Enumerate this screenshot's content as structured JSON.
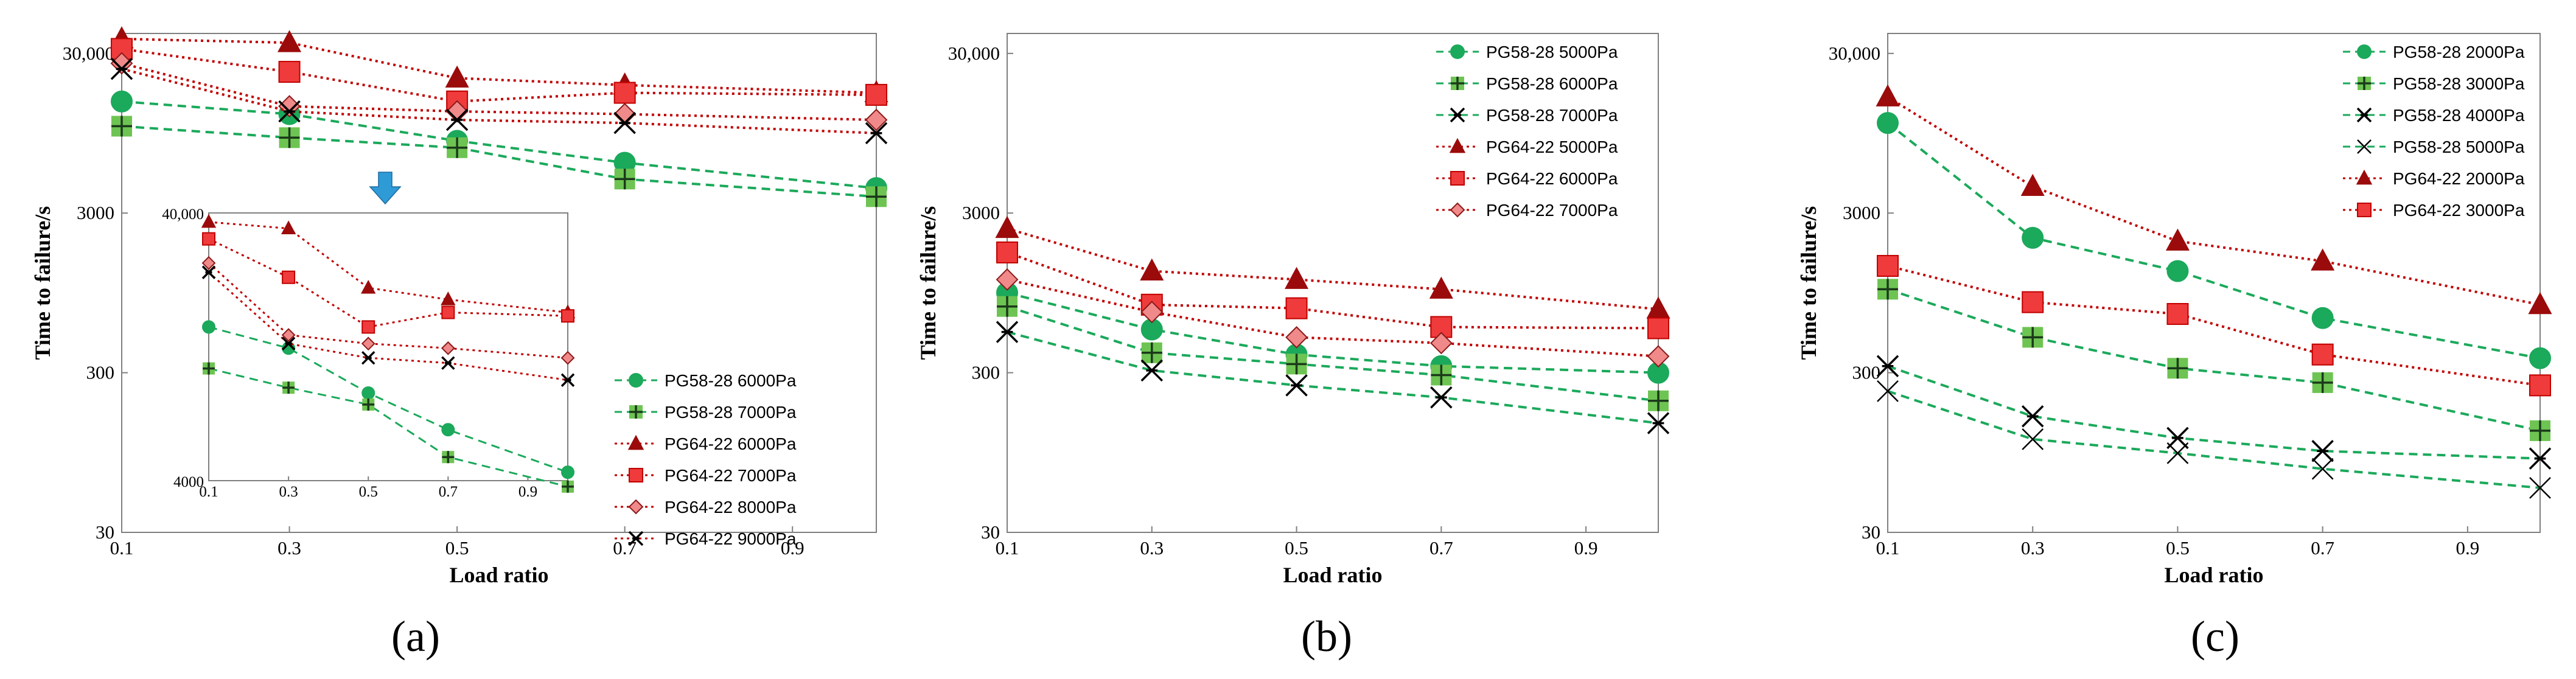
{
  "chart_data": [
    {
      "id": "a",
      "type": "line",
      "panel_label": "(a)",
      "xlabel": "Load ratio",
      "ylabel": "Time to failure/s",
      "yscale": "log",
      "xlim": [
        0.1,
        1.0
      ],
      "ylim": [
        30,
        40000
      ],
      "x_ticks": [
        "0.1",
        "0.3",
        "0.5",
        "0.7",
        "0.9"
      ],
      "y_ticks": [
        "30",
        "300",
        "3000",
        "30,000"
      ],
      "legend_position": "bottom-right",
      "x": [
        0.1,
        0.3,
        0.5,
        0.7,
        1.0
      ],
      "series": [
        {
          "name": "PG58-28 6000Pa",
          "group": "PG58-28",
          "marker": "circle",
          "values": [
            15000,
            12500,
            8500,
            6200,
            4300
          ]
        },
        {
          "name": "PG58-28 7000Pa",
          "group": "PG58-28",
          "marker": "plus-square",
          "values": [
            10500,
            8900,
            7700,
            4900,
            3800
          ]
        },
        {
          "name": "PG64-22 6000Pa",
          "group": "PG64-22",
          "marker": "triangle",
          "values": [
            37000,
            35000,
            21000,
            19000,
            17000
          ]
        },
        {
          "name": "PG64-22 7000Pa",
          "group": "PG64-22",
          "marker": "square",
          "values": [
            32000,
            23000,
            15000,
            17000,
            16500
          ]
        },
        {
          "name": "PG64-22 8000Pa",
          "group": "PG64-22",
          "marker": "diamond",
          "values": [
            26000,
            14000,
            13000,
            12500,
            11500
          ]
        },
        {
          "name": "PG64-22 9000Pa",
          "group": "PG64-22",
          "marker": "x-star",
          "values": [
            24000,
            13000,
            11500,
            11000,
            9500
          ]
        }
      ],
      "inset": {
        "ylim": [
          4000,
          40000
        ],
        "x_ticks": [
          "0.1",
          "0.3",
          "0.5",
          "0.7",
          "0.9"
        ],
        "y_ticks": [
          "4000",
          "40,000"
        ],
        "note": "magnified view of the upper curves"
      }
    },
    {
      "id": "b",
      "type": "line",
      "panel_label": "(b)",
      "xlabel": "Load ratio",
      "ylabel": "Time to failure/s",
      "yscale": "log",
      "xlim": [
        0.1,
        1.0
      ],
      "ylim": [
        30,
        40000
      ],
      "x_ticks": [
        "0.1",
        "0.3",
        "0.5",
        "0.7",
        "0.9"
      ],
      "y_ticks": [
        "30",
        "300",
        "3000",
        "30,000"
      ],
      "legend_position": "top-right",
      "x": [
        0.1,
        0.3,
        0.5,
        0.7,
        1.0
      ],
      "series": [
        {
          "name": "PG58-28 5000Pa",
          "group": "PG58-28",
          "marker": "circle",
          "values": [
            950,
            560,
            390,
            330,
            300
          ]
        },
        {
          "name": "PG58-28 6000Pa",
          "group": "PG58-28",
          "marker": "plus-square",
          "values": [
            780,
            400,
            340,
            290,
            200
          ]
        },
        {
          "name": "PG58-28 7000Pa",
          "group": "PG58-28",
          "marker": "x-star",
          "values": [
            540,
            310,
            250,
            210,
            145
          ]
        },
        {
          "name": "PG64-22 5000Pa",
          "group": "PG64-22",
          "marker": "triangle",
          "values": [
            2400,
            1300,
            1150,
            1000,
            750
          ]
        },
        {
          "name": "PG64-22 6000Pa",
          "group": "PG64-22",
          "marker": "square",
          "values": [
            1700,
            800,
            760,
            580,
            570
          ]
        },
        {
          "name": "PG64-22 7000Pa",
          "group": "PG64-22",
          "marker": "diamond",
          "values": [
            1150,
            720,
            500,
            460,
            380
          ]
        }
      ]
    },
    {
      "id": "c",
      "type": "line",
      "panel_label": "(c)",
      "xlabel": "Load ratio",
      "ylabel": "Time to failure/s",
      "yscale": "log",
      "xlim": [
        0.1,
        1.0
      ],
      "ylim": [
        30,
        40000
      ],
      "x_ticks": [
        "0.1",
        "0.3",
        "0.5",
        "0.7",
        "0.9"
      ],
      "y_ticks": [
        "30",
        "300",
        "3000",
        "30,000"
      ],
      "legend_position": "top-right",
      "x": [
        0.1,
        0.3,
        0.5,
        0.7,
        1.0
      ],
      "series": [
        {
          "name": "PG58-28 2000Pa",
          "group": "PG58-28",
          "marker": "circle",
          "values": [
            11000,
            2100,
            1300,
            660,
            370
          ]
        },
        {
          "name": "PG58-28 3000Pa",
          "group": "PG58-28",
          "marker": "plus-square",
          "values": [
            1000,
            500,
            320,
            260,
            130
          ]
        },
        {
          "name": "PG58-28 4000Pa",
          "group": "PG58-28",
          "marker": "x-star",
          "values": [
            330,
            160,
            117,
            97,
            87
          ]
        },
        {
          "name": "PG58-28 5000Pa",
          "group": "PG58-28",
          "marker": "x-thin",
          "values": [
            230,
            115,
            94,
            75,
            57
          ]
        },
        {
          "name": "PG64-22 2000Pa",
          "group": "PG64-22",
          "marker": "triangle",
          "values": [
            16000,
            4400,
            2000,
            1500,
            800
          ]
        },
        {
          "name": "PG64-22 3000Pa",
          "group": "PG64-22",
          "marker": "square",
          "values": [
            1400,
            830,
            700,
            390,
            250
          ]
        }
      ]
    }
  ],
  "colors": {
    "PG58-28": "#1ba95b",
    "PG58-28-marker": "#6ec452",
    "PG64-22": "#c00000",
    "PG64-22-triangle": "#9b0b0b",
    "PG64-22-square": "#ef3b3b",
    "PG64-22-diamond": "#f08a8a",
    "arrow": "#2e9bd6"
  }
}
